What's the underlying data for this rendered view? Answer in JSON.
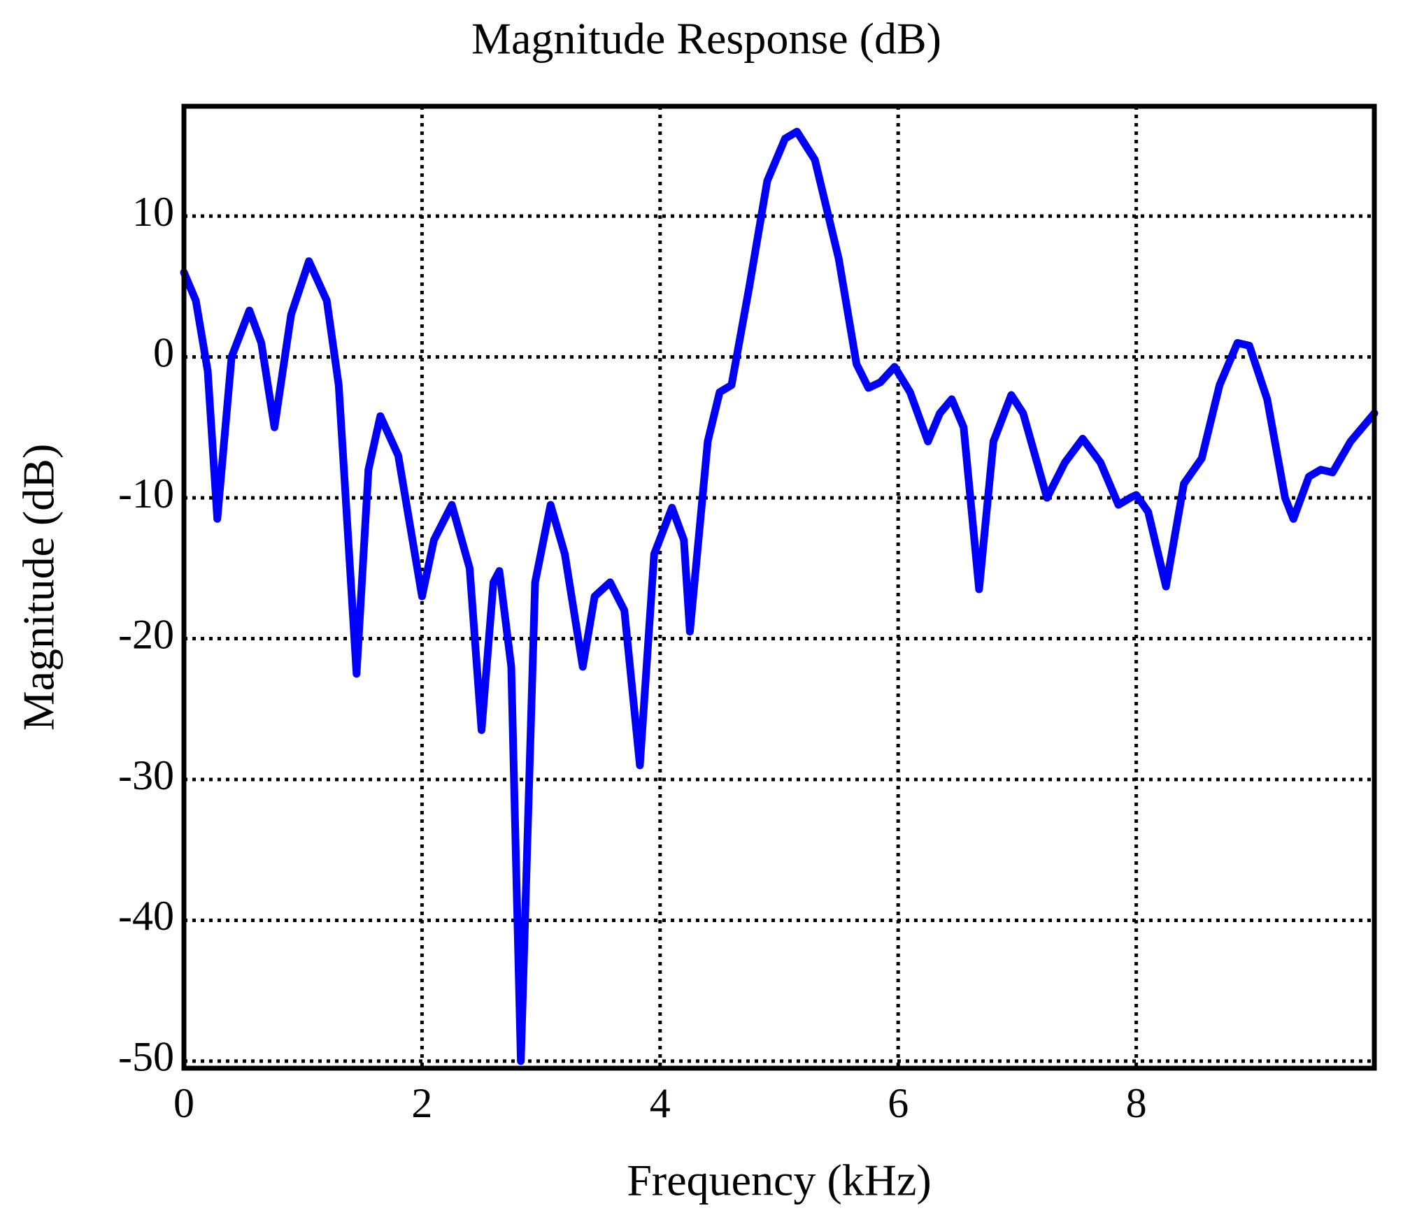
{
  "chart_data": {
    "type": "line",
    "title": "Magnitude Response (dB)",
    "xlabel": "Frequency (kHz)",
    "ylabel": "Magnitude (dB)",
    "xlim": [
      0,
      10
    ],
    "xticks": [
      0,
      2,
      4,
      6,
      8
    ],
    "ylim": [
      -50.5,
      17.8
    ],
    "yticks": [
      -50,
      -40,
      -30,
      -20,
      -10,
      0,
      10
    ],
    "grid": true,
    "series": [
      {
        "color": "#0000ff",
        "x": [
          0,
          0.1,
          0.2,
          0.28,
          0.4,
          0.55,
          0.65,
          0.76,
          0.9,
          1.05,
          1.2,
          1.3,
          1.45,
          1.55,
          1.65,
          1.8,
          2.0,
          2.1,
          2.25,
          2.4,
          2.5,
          2.6,
          2.65,
          2.75,
          2.83,
          2.95,
          3.08,
          3.2,
          3.35,
          3.45,
          3.58,
          3.7,
          3.83,
          3.95,
          4.1,
          4.2,
          4.25,
          4.4,
          4.5,
          4.6,
          4.75,
          4.9,
          5.05,
          5.15,
          5.3,
          5.5,
          5.65,
          5.75,
          5.85,
          5.97,
          6.1,
          6.25,
          6.35,
          6.45,
          6.55,
          6.68,
          6.8,
          6.95,
          7.05,
          7.25,
          7.4,
          7.55,
          7.7,
          7.85,
          7.95,
          8.0,
          8.1,
          8.25,
          8.4,
          8.55,
          8.7,
          8.85,
          8.95,
          9.1,
          9.25,
          9.32,
          9.45,
          9.55,
          9.65,
          9.8,
          10
        ],
        "values": [
          6,
          4,
          -1,
          -11.5,
          0,
          3.3,
          1,
          -5,
          3,
          6.8,
          4,
          -2,
          -22.5,
          -8,
          -4.2,
          -7,
          -17,
          -13,
          -10.5,
          -15,
          -26.5,
          -16,
          -15.2,
          -22,
          -50,
          -16,
          -10.5,
          -14,
          -22,
          -17,
          -16,
          -18,
          -29,
          -14,
          -10.7,
          -13,
          -19.5,
          -6,
          -2.5,
          -2,
          5,
          12.5,
          15.5,
          16,
          14,
          7,
          -0.5,
          -2.2,
          -1.8,
          -0.7,
          -2.5,
          -6,
          -4,
          -3,
          -5,
          -16.5,
          -6,
          -2.7,
          -4,
          -10,
          -7.5,
          -5.8,
          -7.5,
          -10.5,
          -10,
          -9.8,
          -11,
          -16.3,
          -9,
          -7.2,
          -2,
          1,
          0.8,
          -3,
          -10,
          -11.5,
          -8.5,
          -8,
          -8.2,
          -6,
          -4
        ]
      }
    ]
  }
}
